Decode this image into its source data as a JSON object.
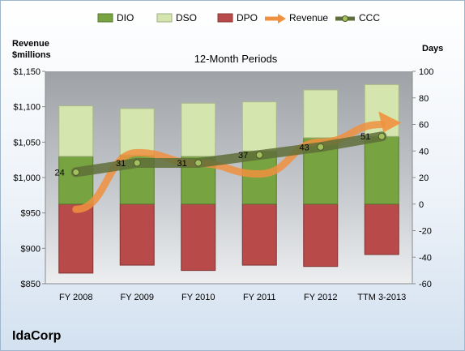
{
  "chart_data": {
    "type": "bar",
    "title": "12-Month Periods",
    "company": "IdaCorp",
    "left_axis_title_line1": "Revenue",
    "left_axis_title_line2": "$millions",
    "right_axis_title": "Days",
    "categories": [
      "FY 2008",
      "FY 2009",
      "FY 2010",
      "FY 2011",
      "FY 2012",
      "TTM 3-2013"
    ],
    "left_axis": {
      "range": [
        850,
        1150
      ],
      "ticks": [
        850,
        900,
        950,
        1000,
        1050,
        1100,
        1150
      ],
      "tick_labels": [
        "$850",
        "$900",
        "$950",
        "$1,000",
        "$1,050",
        "$1,100",
        "$1,150"
      ]
    },
    "right_axis": {
      "range": [
        -60,
        100
      ],
      "ticks": [
        -60,
        -40,
        -20,
        0,
        20,
        40,
        60,
        80,
        100
      ],
      "tick_labels": [
        "-60",
        "-40",
        "-20",
        "0",
        "20",
        "40",
        "60",
        "80",
        "100"
      ]
    },
    "series": [
      {
        "name": "DIO",
        "type": "stacked-bar",
        "axis": "right",
        "color": "#77a440",
        "values": [
          36,
          37,
          36,
          40,
          50,
          51
        ]
      },
      {
        "name": "DSO",
        "type": "stacked-bar",
        "axis": "right",
        "color": "#d4e6ad",
        "values": [
          38,
          35,
          40,
          37,
          36,
          39
        ]
      },
      {
        "name": "DPO",
        "type": "stacked-bar-negative",
        "axis": "right",
        "color": "#b84a4a",
        "values": [
          -52,
          -46,
          -50,
          -46,
          -47,
          -38
        ]
      },
      {
        "name": "Revenue",
        "type": "arrow-line",
        "axis": "left",
        "color": "#f0913f",
        "values": [
          955,
          1035,
          1020,
          1005,
          1050,
          1075
        ]
      },
      {
        "name": "CCC",
        "type": "line-markers",
        "axis": "right",
        "color": "#5f6e3a",
        "values": [
          24,
          31,
          31,
          37,
          43,
          51
        ],
        "data_labels": [
          "24",
          "31",
          "31",
          "37",
          "43",
          "51"
        ]
      }
    ],
    "legend_position": "top",
    "grid": false
  }
}
